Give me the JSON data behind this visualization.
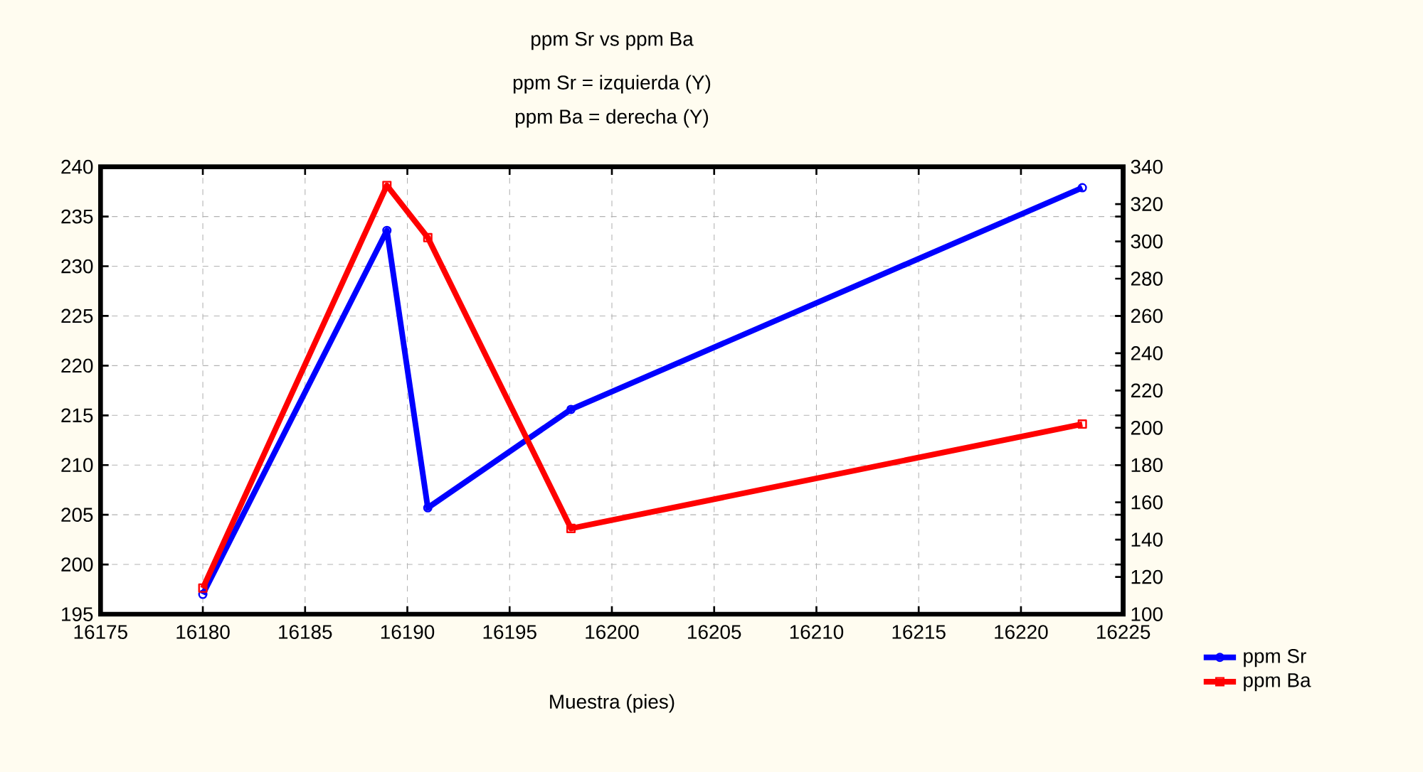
{
  "chart_data": {
    "type": "line",
    "title": "ppm Sr vs ppm Ba",
    "subtitle": "ppm Sr = izquierda (Y)",
    "annotations": [
      "ppm Ba = derecha (Y)"
    ],
    "xlabel": "Muestra (pies)",
    "x": [
      16180,
      16189,
      16191,
      16198,
      16223
    ],
    "series": [
      {
        "name": "ppm Sr",
        "color": "#0000ff",
        "marker": "circle",
        "values": [
          197,
          233.6,
          205.7,
          215.6,
          237.9
        ]
      },
      {
        "name": "ppm Ba",
        "color": "#ff0000",
        "marker": "square",
        "axis": "y2",
        "values": [
          114,
          330,
          302,
          146,
          202
        ]
      }
    ],
    "xlim": [
      16175,
      16225
    ],
    "xticks": [
      16175,
      16180,
      16185,
      16190,
      16195,
      16200,
      16205,
      16210,
      16215,
      16220,
      16225
    ],
    "ylim": [
      195,
      240
    ],
    "yticks": [
      195,
      200,
      205,
      210,
      215,
      220,
      225,
      230,
      235,
      240
    ],
    "y2lim": [
      100,
      340
    ],
    "y2ticks": [
      100,
      120,
      140,
      160,
      180,
      200,
      220,
      240,
      260,
      280,
      300,
      320,
      340
    ],
    "grid": true,
    "legend": "bottom right",
    "line_style": "solid"
  }
}
